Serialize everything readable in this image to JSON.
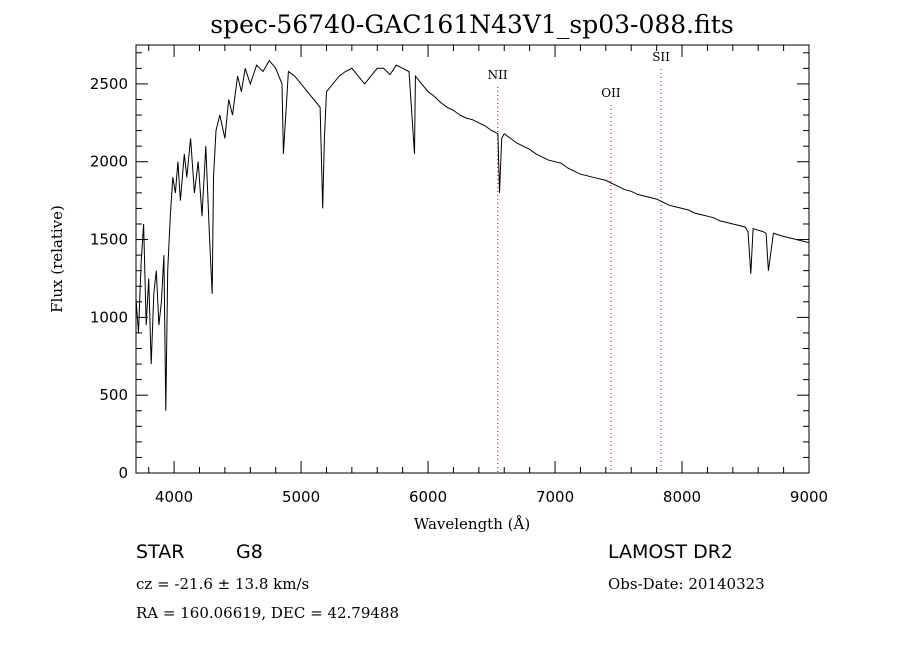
{
  "chart_data": {
    "type": "line",
    "title": "spec-56740-GAC161N43V1_sp03-088.fits",
    "xlabel": "Wavelength (Å)",
    "ylabel": "Flux (relative)",
    "xlim": [
      3700,
      9000
    ],
    "ylim": [
      0,
      2750
    ],
    "x_ticks": [
      "4000",
      "5000",
      "6000",
      "7000",
      "8000",
      "9000"
    ],
    "y_ticks": [
      "0",
      "500",
      "1000",
      "1500",
      "2000",
      "2500"
    ],
    "grid": false,
    "series": [
      {
        "x": [
          3700,
          3720,
          3740,
          3760,
          3780,
          3800,
          3820,
          3840,
          3860,
          3880,
          3900,
          3920,
          3935,
          3950,
          3970,
          3990,
          4010,
          4030,
          4050,
          4080,
          4100,
          4130,
          4160,
          4190,
          4220,
          4250,
          4280,
          4300,
          4310,
          4330,
          4360,
          4400,
          4430,
          4460,
          4500,
          4530,
          4560,
          4600,
          4650,
          4700,
          4750,
          4800,
          4850,
          4861,
          4900,
          4950,
          5000,
          5050,
          5100,
          5150,
          5170,
          5184,
          5200,
          5250,
          5300,
          5350,
          5400,
          5450,
          5500,
          5550,
          5600,
          5650,
          5700,
          5750,
          5800,
          5850,
          5893,
          5900,
          5950,
          6000,
          6050,
          6100,
          6150,
          6200,
          6250,
          6300,
          6350,
          6400,
          6450,
          6500,
          6550,
          6563,
          6580,
          6600,
          6650,
          6700,
          6750,
          6800,
          6850,
          6900,
          6950,
          7000,
          7050,
          7100,
          7150,
          7200,
          7250,
          7300,
          7350,
          7400,
          7450,
          7500,
          7550,
          7600,
          7650,
          7700,
          7750,
          7800,
          7850,
          7900,
          7950,
          8000,
          8050,
          8100,
          8150,
          8200,
          8250,
          8300,
          8350,
          8400,
          8450,
          8498,
          8520,
          8542,
          8560,
          8600,
          8640,
          8662,
          8680,
          8720,
          8760,
          8800,
          8850,
          8900,
          8950,
          9000
        ],
        "values": [
          1120,
          900,
          1350,
          1600,
          950,
          1250,
          700,
          1150,
          1300,
          950,
          1100,
          1400,
          400,
          1300,
          1650,
          1900,
          1800,
          2000,
          1750,
          2050,
          1900,
          2150,
          1800,
          2000,
          1650,
          2100,
          1500,
          1150,
          1900,
          2200,
          2300,
          2150,
          2400,
          2300,
          2550,
          2450,
          2600,
          2500,
          2620,
          2580,
          2650,
          2600,
          2500,
          2050,
          2580,
          2550,
          2500,
          2450,
          2400,
          2350,
          1700,
          2150,
          2450,
          2500,
          2550,
          2580,
          2600,
          2550,
          2500,
          2550,
          2600,
          2600,
          2560,
          2620,
          2600,
          2580,
          2050,
          2550,
          2500,
          2450,
          2420,
          2380,
          2350,
          2330,
          2300,
          2280,
          2270,
          2250,
          2230,
          2200,
          2180,
          1800,
          2150,
          2180,
          2150,
          2120,
          2100,
          2080,
          2050,
          2030,
          2010,
          2000,
          1990,
          1960,
          1940,
          1920,
          1910,
          1900,
          1890,
          1880,
          1860,
          1840,
          1820,
          1810,
          1790,
          1780,
          1770,
          1760,
          1740,
          1720,
          1710,
          1700,
          1690,
          1670,
          1660,
          1650,
          1640,
          1620,
          1610,
          1600,
          1590,
          1580,
          1550,
          1280,
          1570,
          1560,
          1550,
          1540,
          1300,
          1540,
          1530,
          1520,
          1510,
          1500,
          1490,
          1480
        ]
      }
    ],
    "annotations": [
      {
        "label": "NII",
        "x": 6548
      },
      {
        "label": "OII",
        "x": 7440
      },
      {
        "label": "SII",
        "x": 7835
      }
    ]
  },
  "info": {
    "object_class": "STAR",
    "subclass": "G8",
    "survey": "LAMOST DR2",
    "velocity": "cz = -21.6 ± 13.8 km/s",
    "obs_date": "Obs-Date: 20140323",
    "coords": "RA = 160.06619, DEC =  42.79488"
  }
}
